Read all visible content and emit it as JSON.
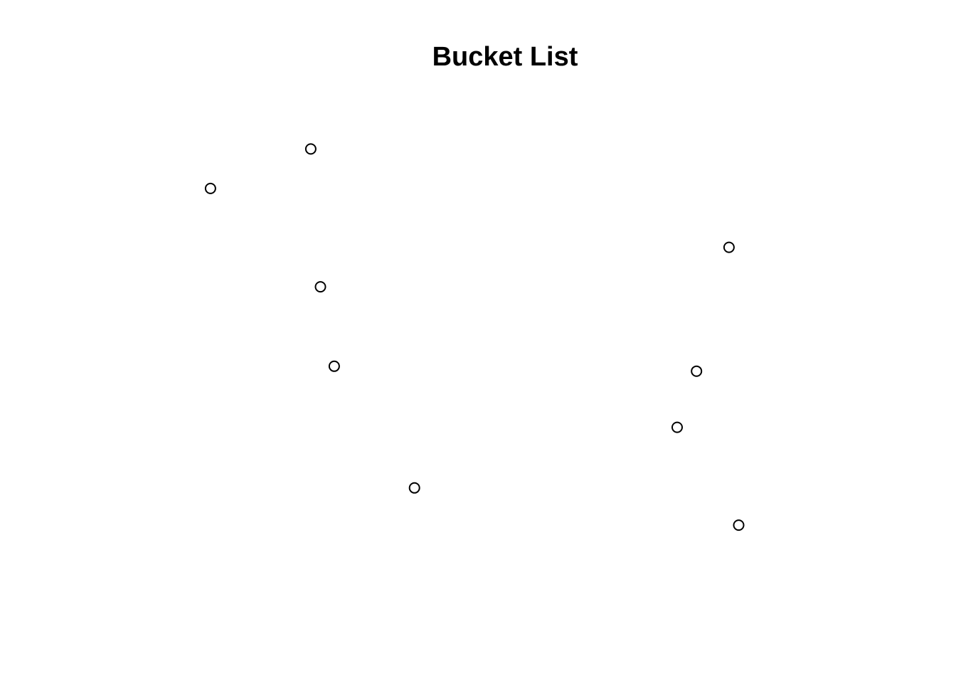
{
  "chart_data": {
    "type": "scatter",
    "title": "Bucket List",
    "xlabel": "",
    "ylabel": "",
    "axes_visible": false,
    "grid": false,
    "marker": "open-circle",
    "marker_color": "#000000",
    "background": "#ffffff",
    "xlim": [
      0,
      1
    ],
    "ylim": [
      0,
      1
    ],
    "points": [
      {
        "x": 0.219,
        "y": 0.898
      },
      {
        "x": 0.074,
        "y": 0.81
      },
      {
        "x": 0.233,
        "y": 0.591
      },
      {
        "x": 0.253,
        "y": 0.414
      },
      {
        "x": 0.369,
        "y": 0.143
      },
      {
        "x": 0.777,
        "y": 0.403
      },
      {
        "x": 0.749,
        "y": 0.278
      },
      {
        "x": 0.824,
        "y": 0.679
      },
      {
        "x": 0.838,
        "y": 0.06
      }
    ]
  }
}
